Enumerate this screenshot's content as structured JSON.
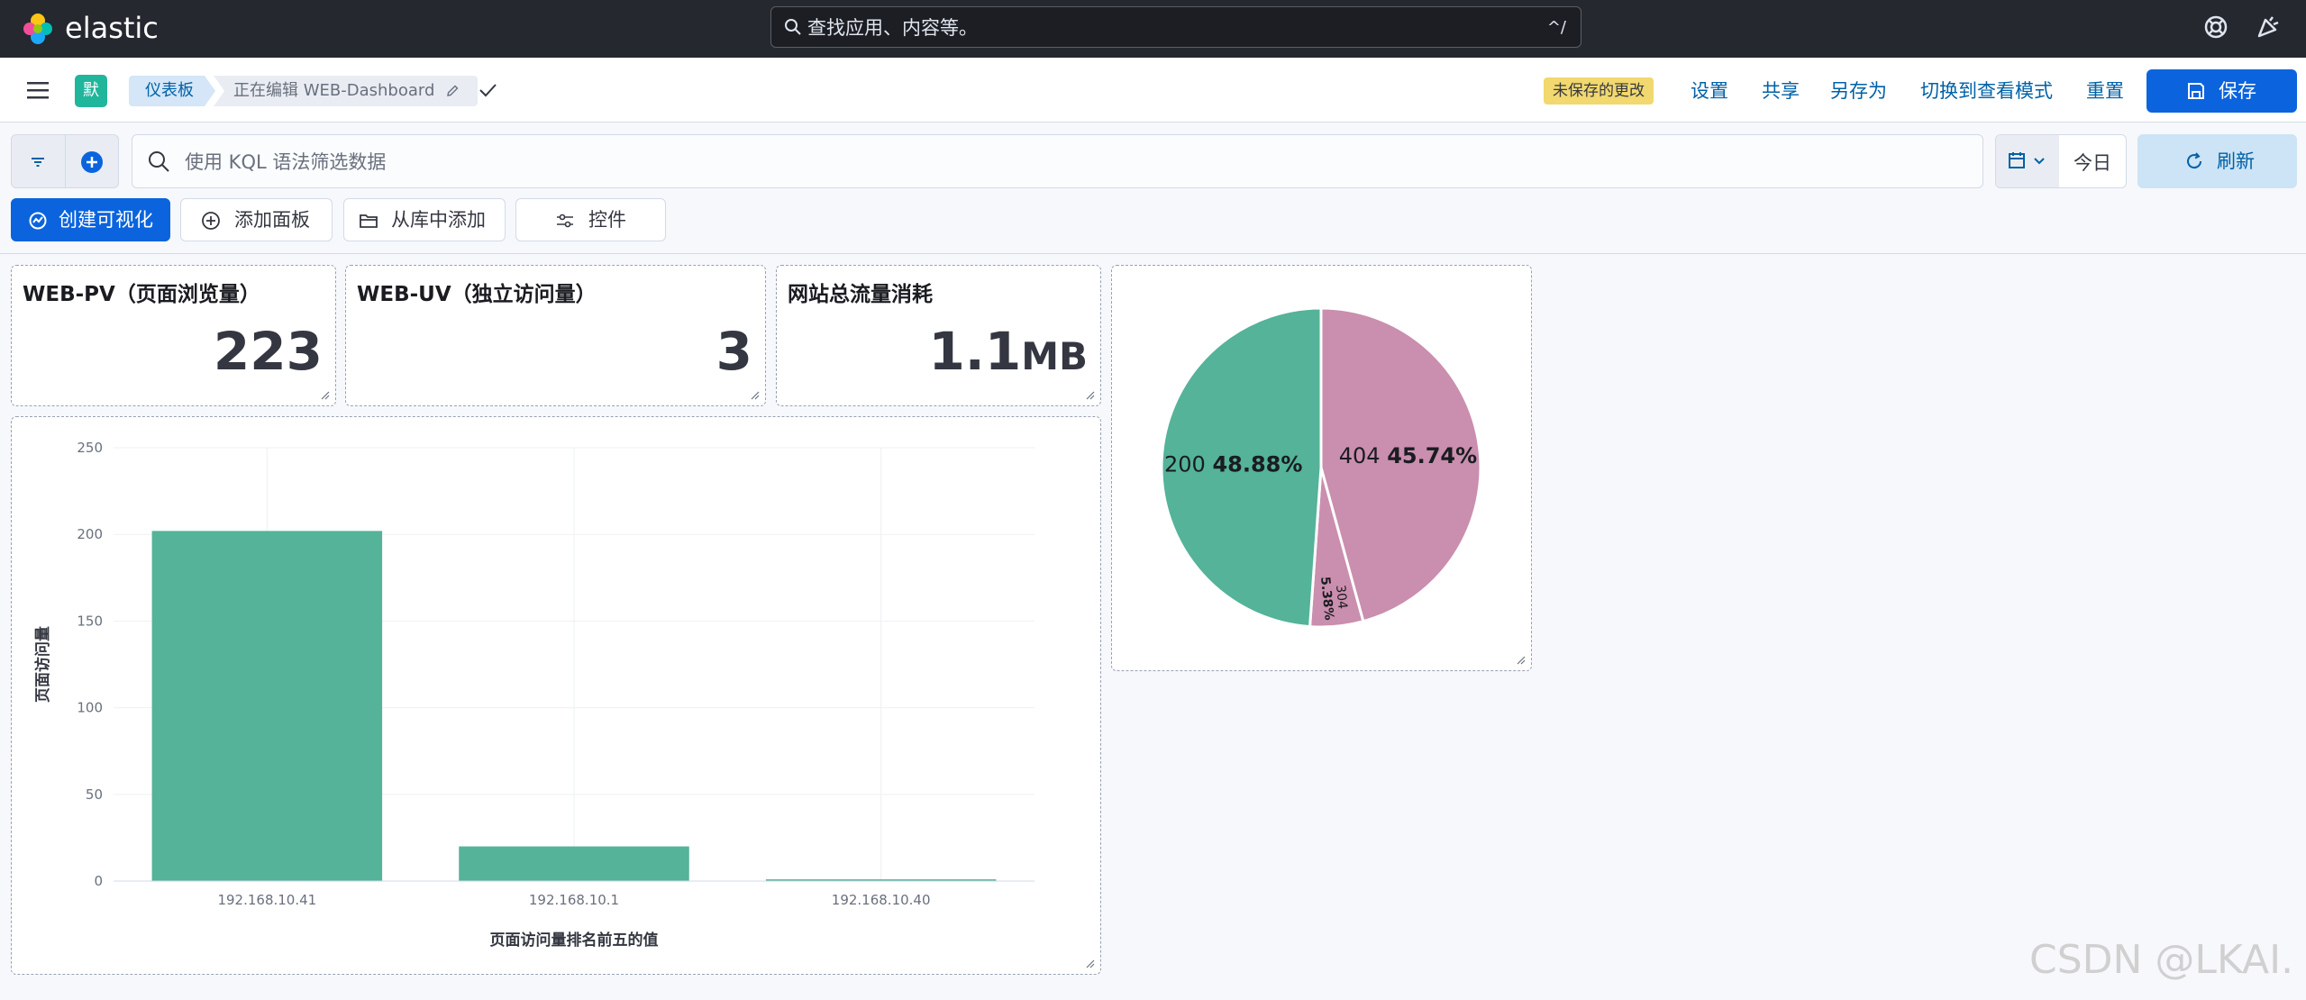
{
  "header": {
    "brand": "elastic",
    "search_placeholder": "查找应用、内容等。",
    "search_shortcut": "^/"
  },
  "subbar": {
    "space_badge": "默",
    "breadcrumb_dashboards": "仪表板",
    "breadcrumb_current": "正在编辑 WEB-Dashboard",
    "unsaved_badge": "未保存的更改",
    "links": {
      "settings": "设置",
      "share": "共享",
      "save_as": "另存为",
      "view_mode": "切换到查看模式",
      "reset": "重置"
    },
    "save_label": "保存"
  },
  "filterbar": {
    "kql_placeholder": "使用 KQL 语法筛选数据",
    "date_label": "今日",
    "refresh_label": "刷新"
  },
  "toolbar": {
    "create_viz": "创建可视化",
    "add_panel": "添加面板",
    "add_from_library": "从库中添加",
    "controls": "控件"
  },
  "panels": {
    "pv": {
      "title": "WEB-PV（页面浏览量）",
      "value": "223"
    },
    "uv": {
      "title": "WEB-UV（独立访问量）",
      "value": "3"
    },
    "traffic": {
      "title": "网站总流量消耗",
      "value": "1.1",
      "unit": "MB"
    }
  },
  "colors": {
    "green": "#54b399",
    "pink": "#ca8eae",
    "primary": "#0b64dd"
  },
  "chart_data": [
    {
      "type": "bar",
      "categories": [
        "192.168.10.41",
        "192.168.10.1",
        "192.168.10.40"
      ],
      "values": [
        202,
        20,
        1
      ],
      "xlabel": "页面访问量排名前五的值",
      "ylabel": "页面访问量",
      "ylim": [
        0,
        250
      ],
      "yticks": [
        0,
        50,
        100,
        150,
        200,
        250
      ],
      "grid": true
    },
    {
      "type": "pie",
      "slices": [
        {
          "label": "404",
          "percent": "45.74%",
          "value": 45.74,
          "color": "#ca8eae"
        },
        {
          "label": "304",
          "percent": "5.38%",
          "value": 5.38,
          "color": "#ca8eae"
        },
        {
          "label": "200",
          "percent": "48.88%",
          "value": 48.88,
          "color": "#54b399"
        }
      ]
    }
  ],
  "watermark": "CSDN @LKAI."
}
